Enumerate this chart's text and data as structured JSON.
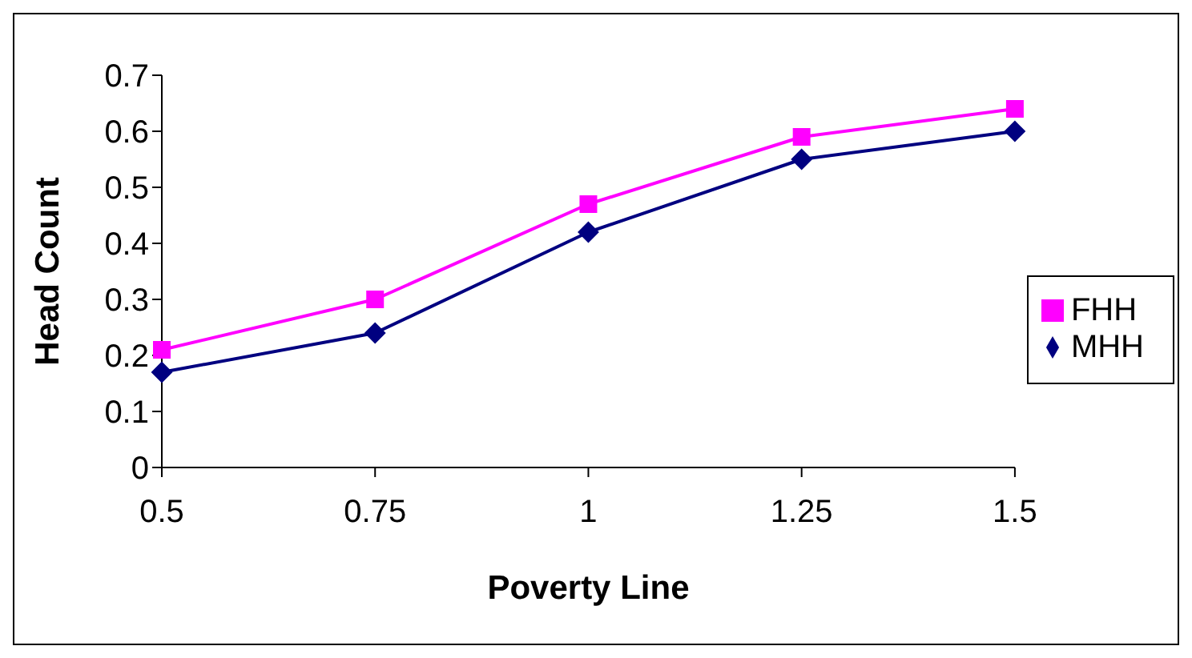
{
  "chart_data": {
    "type": "line",
    "xlabel": "Poverty Line",
    "ylabel": "Head Count",
    "categories": [
      "0.5",
      "0.75",
      "1",
      "1.25",
      "1.5"
    ],
    "series": [
      {
        "name": "MHH",
        "color": "#000080",
        "marker": "diamond",
        "values": [
          0.17,
          0.24,
          0.42,
          0.55,
          0.6
        ]
      },
      {
        "name": "FHH",
        "color": "#ff00ff",
        "marker": "square",
        "values": [
          0.21,
          0.3,
          0.47,
          0.59,
          0.64
        ]
      }
    ],
    "ylim": [
      0,
      0.7
    ],
    "yticks": [
      0,
      0.1,
      0.2,
      0.3,
      0.4,
      0.5,
      0.6,
      0.7
    ],
    "grid": false,
    "legend": "right"
  }
}
